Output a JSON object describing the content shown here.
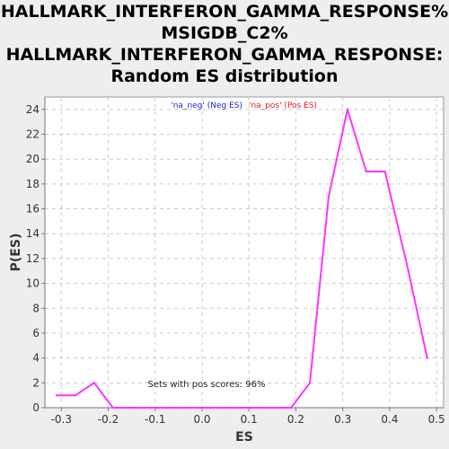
{
  "chart_data": {
    "type": "line",
    "title_lines": [
      "HALLMARK_INTERFERON_GAMMA_RESPONSE%",
      "MSIGDB_C2%",
      "HALLMARK_INTERFERON_GAMMA_RESPONSE:",
      "Random ES distribution"
    ],
    "xlabel": "ES",
    "ylabel": "P(ES)",
    "xlim": [
      -0.335,
      0.515
    ],
    "ylim": [
      0,
      25
    ],
    "xticks": [
      "-0.3",
      "-0.2",
      "-0.1",
      "0.0",
      "0.1",
      "0.2",
      "0.3",
      "0.4",
      "0.5"
    ],
    "xtick_values": [
      -0.3,
      -0.2,
      -0.1,
      0.0,
      0.1,
      0.2,
      0.3,
      0.4,
      0.5
    ],
    "yticks": [
      "0",
      "2",
      "4",
      "6",
      "8",
      "10",
      "12",
      "14",
      "16",
      "18",
      "20",
      "22",
      "24"
    ],
    "ytick_values": [
      0,
      2,
      4,
      6,
      8,
      10,
      12,
      14,
      16,
      18,
      20,
      22,
      24
    ],
    "grid": true,
    "legend": [
      {
        "name": "'na_neg' (Neg ES)",
        "color": "#2222dd"
      },
      {
        "name": "'na_pos' (Pos ES)",
        "color": "#dd2222"
      }
    ],
    "legend_position": "top-center",
    "annotation": "Sets with pos scores: 96%",
    "series": [
      {
        "color": "#ff33ff",
        "x": [
          -0.31,
          -0.27,
          -0.23,
          -0.19,
          -0.15,
          -0.11,
          -0.07,
          -0.03,
          0.01,
          0.05,
          0.09,
          0.13,
          0.17,
          0.19,
          0.23,
          0.27,
          0.31,
          0.35,
          0.39,
          0.44,
          0.48
        ],
        "y": [
          1,
          1,
          2,
          0,
          0,
          0,
          0,
          0,
          0,
          0,
          0,
          0,
          0,
          0,
          2,
          17,
          24,
          19,
          19,
          11,
          4
        ]
      }
    ]
  }
}
